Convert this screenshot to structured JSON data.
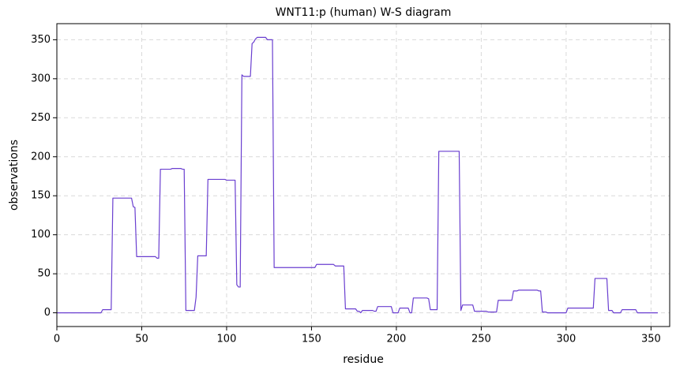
{
  "chart_data": {
    "type": "line",
    "title": "WNT11:p (human) W-S diagram",
    "xlabel": "residue",
    "ylabel": "observations",
    "series": [
      {
        "color": "#6a3fd0",
        "x": [
          0,
          26,
          27,
          32,
          33,
          44,
          45,
          46,
          47,
          58,
          59,
          60,
          61,
          67,
          68,
          73,
          74,
          75,
          76,
          81,
          82,
          83,
          88,
          89,
          99,
          100,
          105,
          106,
          107,
          108,
          109,
          110,
          114,
          115,
          116,
          117,
          118,
          123,
          124,
          127,
          128,
          152,
          153,
          163,
          164,
          169,
          170,
          176,
          177,
          178,
          179,
          180,
          186,
          187,
          188,
          189,
          197,
          198,
          201,
          202,
          207,
          208,
          209,
          210,
          218,
          219,
          220,
          224,
          225,
          237,
          238,
          239,
          245,
          246,
          253,
          254,
          259,
          260,
          268,
          269,
          271,
          272,
          283,
          284,
          285,
          286,
          288,
          289,
          300,
          301,
          316,
          317,
          324,
          325,
          327,
          328,
          332,
          333,
          341,
          342,
          354
        ],
        "values": [
          0,
          0,
          4,
          4,
          147,
          147,
          136,
          135,
          72,
          72,
          70,
          70,
          184,
          184,
          185,
          185,
          184,
          184,
          3,
          3,
          20,
          73,
          73,
          171,
          171,
          170,
          170,
          36,
          33,
          33,
          305,
          303,
          303,
          345,
          347,
          351,
          353,
          353,
          350,
          350,
          58,
          58,
          62,
          62,
          60,
          60,
          5,
          5,
          2,
          2,
          0,
          3,
          3,
          2,
          2,
          8,
          8,
          0,
          0,
          6,
          6,
          0,
          0,
          19,
          19,
          18,
          4,
          4,
          207,
          207,
          3,
          10,
          10,
          2,
          2,
          1,
          1,
          16,
          16,
          28,
          28,
          29,
          29,
          28,
          28,
          1,
          1,
          0,
          0,
          6,
          6,
          44,
          44,
          3,
          3,
          0,
          0,
          4,
          4,
          0,
          0
        ]
      }
    ],
    "xlim": [
      0,
      361
    ],
    "ylim": [
      -17.6,
      370.6
    ],
    "xticks": [
      0,
      50,
      100,
      150,
      200,
      250,
      300,
      350
    ],
    "yticks": [
      0,
      50,
      100,
      150,
      200,
      250,
      300,
      350
    ],
    "grid": true
  }
}
